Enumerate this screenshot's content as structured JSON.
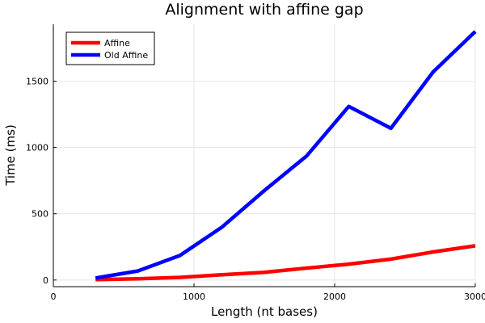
{
  "chart_data": {
    "type": "line",
    "title": "Alignment with affine gap",
    "xlabel": "Length (nt bases)",
    "ylabel": "Time (ms)",
    "xlim": [
      0,
      3000
    ],
    "ylim": [
      -50,
      1930
    ],
    "xticks": [
      0,
      1000,
      2000,
      3000
    ],
    "yticks": [
      0,
      500,
      1000,
      1500
    ],
    "grid": true,
    "legend_position": "top-left",
    "x": [
      300,
      600,
      900,
      1200,
      1500,
      1800,
      2100,
      2400,
      2700,
      3000
    ],
    "series": [
      {
        "name": "Affine",
        "color": "#ff0000",
        "values": [
          3,
          10,
          20,
          40,
          58,
          90,
          120,
          158,
          212,
          258
        ]
      },
      {
        "name": "Old Affine",
        "color": "#0000ff",
        "values": [
          15,
          68,
          185,
          400,
          675,
          935,
          1310,
          1145,
          1570,
          1875
        ]
      }
    ]
  }
}
